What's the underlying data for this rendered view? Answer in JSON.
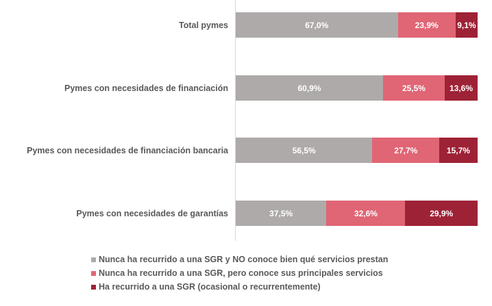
{
  "chart_data": {
    "type": "bar",
    "orientation": "horizontal",
    "stacked": true,
    "categories": [
      "Total pymes",
      "Pymes con necesidades de financiación",
      "Pymes con necesidades de financiación bancaria",
      "Pymes con necesidades de garantías"
    ],
    "series": [
      {
        "name": "Nunca ha recurrido a una SGR y NO conoce bien qué servicios prestan",
        "color": "#aeaaaa",
        "values": [
          67.0,
          60.9,
          56.5,
          37.5
        ],
        "labels": [
          "67,0%",
          "60,9%",
          "56,5%",
          "37,5%"
        ]
      },
      {
        "name": "Nunca ha recurrido a una SGR, pero conoce sus principales servicios",
        "color": "#e06575",
        "values": [
          23.9,
          25.5,
          27.7,
          32.6
        ],
        "labels": [
          "23,9%",
          "25,5%",
          "27,7%",
          "32,6%"
        ]
      },
      {
        "name": "Ha recurrido a una SGR (ocasional o recurrentemente)",
        "color": "#9e2236",
        "values": [
          9.1,
          13.6,
          15.7,
          29.9
        ],
        "labels": [
          "9,1%",
          "13,6%",
          "15,7%",
          "29,9%"
        ]
      }
    ],
    "xlim": [
      0,
      100
    ],
    "title": "",
    "xlabel": "",
    "ylabel": "",
    "grid": false,
    "legend_position": "bottom"
  }
}
